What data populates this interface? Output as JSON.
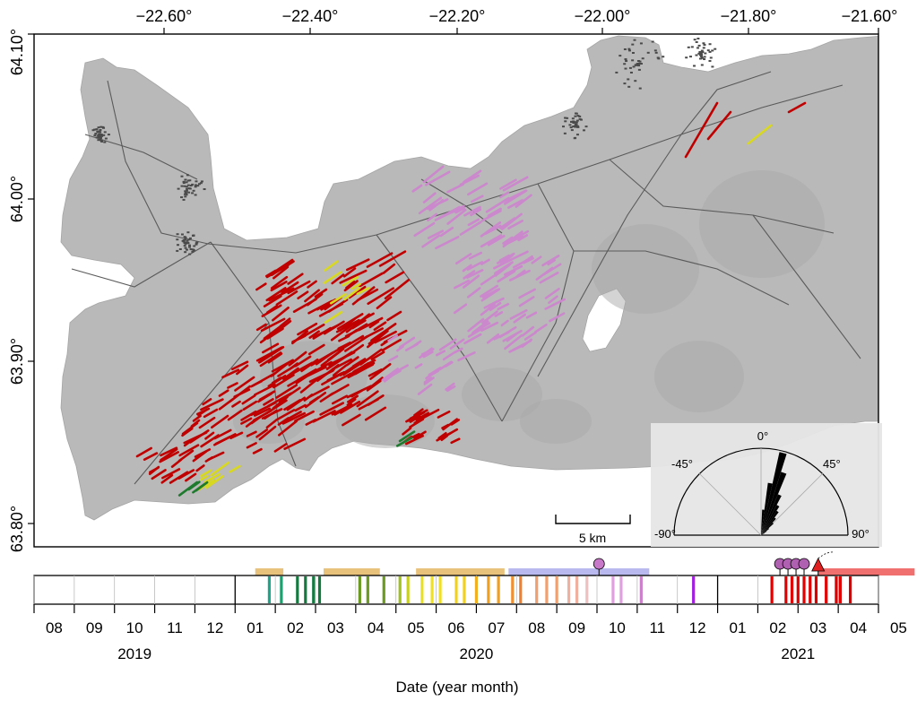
{
  "map": {
    "lon_ticks": [
      "−22.60°",
      "−22.40°",
      "−22.20°",
      "−22.00°",
      "−21.80°",
      "−21.60°"
    ],
    "lat_ticks": [
      "64.10°",
      "64.00°",
      "63.90°",
      "63.80°"
    ],
    "scale_bar_label": "5 km",
    "rose": {
      "labels": [
        "0°",
        "-45°",
        "45°",
        "-90°",
        "90°"
      ],
      "petal_azimuths_deg": [
        5,
        10,
        15,
        20,
        25,
        30,
        35,
        40,
        45,
        50,
        55,
        60
      ],
      "petal_lengths_rel": [
        0.3,
        0.62,
        1.0,
        0.78,
        0.52,
        0.4,
        0.34,
        0.26,
        0.2,
        0.12,
        0.08,
        0.05
      ]
    },
    "colors": {
      "land": "#b9b9b9",
      "sea": "#ffffff",
      "roads": "#555555",
      "fractures_main": "#c00000",
      "fractures_late": "#cc88cc",
      "fractures_early": "#d8d820",
      "fractures_green": "#1f7a2e"
    }
  },
  "timeline": {
    "months": [
      "08",
      "09",
      "10",
      "11",
      "12",
      "01",
      "02",
      "03",
      "04",
      "05",
      "06",
      "07",
      "08",
      "09",
      "10",
      "11",
      "12",
      "01",
      "02",
      "03",
      "04",
      "05"
    ],
    "years": [
      "2019",
      "2020",
      "2021"
    ],
    "xlabel": "Date (year month)",
    "periods": [
      {
        "start": 5.5,
        "end": 6.2,
        "color": "#e8c27a"
      },
      {
        "start": 7.2,
        "end": 8.6,
        "color": "#e8c27a"
      },
      {
        "start": 9.5,
        "end": 11.7,
        "color": "#e8c27a"
      },
      {
        "start": 11.8,
        "end": 15.3,
        "color": "#b9b9f0"
      },
      {
        "start": 19.5,
        "end": 21.9,
        "color": "#f07070"
      }
    ],
    "events": [
      {
        "t": 5.85,
        "color": "#1fa58a"
      },
      {
        "t": 6.15,
        "color": "#1fa070"
      },
      {
        "t": 6.55,
        "color": "#157a40"
      },
      {
        "t": 6.75,
        "color": "#157a40"
      },
      {
        "t": 6.95,
        "color": "#157a40"
      },
      {
        "t": 7.1,
        "color": "#157a40"
      },
      {
        "t": 8.1,
        "color": "#6a9a20"
      },
      {
        "t": 8.3,
        "color": "#6a9a20"
      },
      {
        "t": 8.7,
        "color": "#6a9a20"
      },
      {
        "t": 9.1,
        "color": "#a0c020"
      },
      {
        "t": 9.3,
        "color": "#c8d020"
      },
      {
        "t": 9.65,
        "color": "#e8e020"
      },
      {
        "t": 9.9,
        "color": "#f0e020"
      },
      {
        "t": 10.1,
        "color": "#f0e020"
      },
      {
        "t": 10.5,
        "color": "#f0d020"
      },
      {
        "t": 10.7,
        "color": "#f0d020"
      },
      {
        "t": 11.0,
        "color": "#f0b020"
      },
      {
        "t": 11.3,
        "color": "#f0a020"
      },
      {
        "t": 11.55,
        "color": "#f0a020"
      },
      {
        "t": 11.9,
        "color": "#f09030"
      },
      {
        "t": 12.1,
        "color": "#f08030"
      },
      {
        "t": 12.5,
        "color": "#f0a070"
      },
      {
        "t": 12.75,
        "color": "#f0a070"
      },
      {
        "t": 13.0,
        "color": "#f0a070"
      },
      {
        "t": 13.3,
        "color": "#f0b0a0"
      },
      {
        "t": 13.5,
        "color": "#f0b0a0"
      },
      {
        "t": 13.75,
        "color": "#f0c0c0"
      },
      {
        "t": 14.4,
        "color": "#e0a0e0"
      },
      {
        "t": 14.6,
        "color": "#e0a0e0"
      },
      {
        "t": 15.1,
        "color": "#cc80cc"
      },
      {
        "t": 16.4,
        "color": "#a020e0"
      },
      {
        "t": 18.35,
        "color": "#e00000"
      },
      {
        "t": 18.7,
        "color": "#e00000"
      },
      {
        "t": 18.85,
        "color": "#e00000"
      },
      {
        "t": 19.0,
        "color": "#e00000"
      },
      {
        "t": 19.15,
        "color": "#e00000"
      },
      {
        "t": 19.3,
        "color": "#e00000"
      },
      {
        "t": 19.45,
        "color": "#e00000"
      },
      {
        "t": 19.7,
        "color": "#e00000"
      },
      {
        "t": 19.95,
        "color": "#e00000"
      },
      {
        "t": 20.05,
        "color": "#e00000"
      },
      {
        "t": 20.3,
        "color": "#e00000"
      }
    ],
    "markers": [
      {
        "t": 14.05,
        "color": "#c878c8",
        "shape": "circle"
      },
      {
        "t": 18.55,
        "color": "#b060b0",
        "shape": "circle"
      },
      {
        "t": 18.75,
        "color": "#b060b0",
        "shape": "circle"
      },
      {
        "t": 18.95,
        "color": "#b060b0",
        "shape": "circle"
      },
      {
        "t": 19.15,
        "color": "#b060b0",
        "shape": "circle"
      },
      {
        "t": 19.5,
        "color": "#e02020",
        "shape": "triangle"
      }
    ]
  }
}
